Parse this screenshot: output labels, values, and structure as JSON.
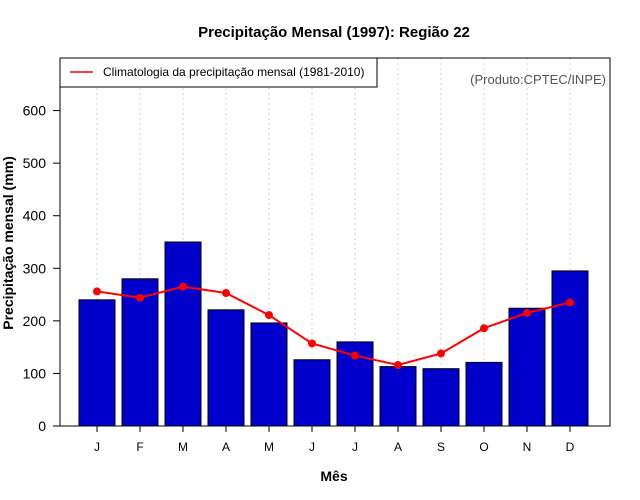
{
  "chart_data": {
    "type": "bar",
    "title": "Precipitação Mensal (1997): Região 22",
    "xlabel": "Mês",
    "ylabel": "Precipitação mensal (mm)",
    "categories": [
      "J",
      "F",
      "M",
      "A",
      "M",
      "J",
      "J",
      "A",
      "S",
      "O",
      "N",
      "D"
    ],
    "ylim": [
      0,
      700
    ],
    "yticks": [
      0,
      100,
      200,
      300,
      400,
      500,
      600
    ],
    "grid": "vertical dotted",
    "series": [
      {
        "name": "Precipitação mensal (1997)",
        "type": "bar",
        "color": "#0000cd",
        "values": [
          240,
          280,
          350,
          221,
          196,
          126,
          160,
          113,
          109,
          121,
          224,
          295
        ]
      },
      {
        "name": "Climatologia da precipitação mensal (1981-2010)",
        "type": "line",
        "color": "#ff0000",
        "values": [
          256,
          244,
          265,
          253,
          211,
          157,
          134,
          116,
          138,
          186,
          215,
          235
        ]
      }
    ],
    "legend": {
      "position": "top-left",
      "entries": [
        "Climatologia da precipitação mensal (1981-2010)"
      ]
    },
    "annotation": "(Produto:CPTEC/INPE)"
  }
}
